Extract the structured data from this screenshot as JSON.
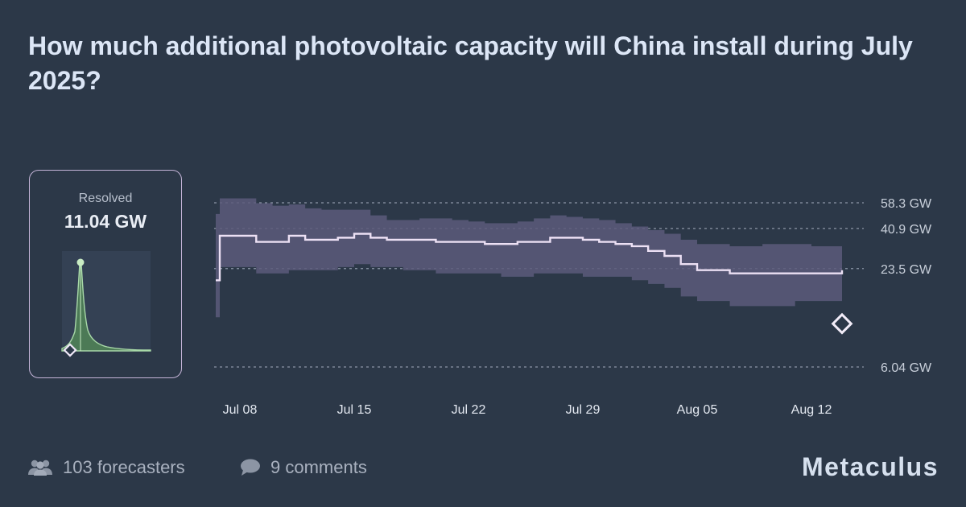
{
  "title": "How much additional photovoltaic capacity will China install during July 2025?",
  "resolution": {
    "label": "Resolved",
    "value_text": "11.04 GW"
  },
  "footer": {
    "forecasters_text": "103 forecasters",
    "comments_text": "9 comments",
    "brand": "Metaculus",
    "forecasters_icon": "users-icon",
    "comments_icon": "speech-bubble-icon"
  },
  "colors": {
    "background": "#2c3848",
    "band": "#5c5a7b",
    "median_line": "#ece0f4",
    "resolved_card_border": "#c4b4d8",
    "mini_density_fill": "#4c7a56",
    "mini_density_stroke": "#a8d8a8",
    "grid": "#8b95a6"
  },
  "chart_data": {
    "type": "area",
    "subtype": "forecast-median-with-interval",
    "title": "",
    "xlabel": "",
    "ylabel": "",
    "y_unit": "GW",
    "y_scale": "log",
    "ylim": [
      6.04,
      58.3
    ],
    "y_ticks": [
      {
        "value": 58.3,
        "label": "58.3 GW"
      },
      {
        "value": 40.9,
        "label": "40.9 GW"
      },
      {
        "value": 23.5,
        "label": "23.5 GW"
      },
      {
        "value": 6.04,
        "label": "6.04 GW"
      }
    ],
    "x_ticks": [
      "Jul 08",
      "Jul 15",
      "Jul 22",
      "Jul 29",
      "Aug 05",
      "Aug 12"
    ],
    "x_range": [
      "2025-07-08",
      "2025-08-14"
    ],
    "grid": "horizontal-dashed",
    "resolution_value": 11.04,
    "series": [
      {
        "name": "",
        "points": [
          {
            "x": "2025-07-08",
            "median": 20,
            "lower": 12,
            "upper": 50
          },
          {
            "x": "2025-07-08",
            "median": 37,
            "lower": 24,
            "upper": 62
          },
          {
            "x": "2025-07-09",
            "median": 34,
            "lower": 22,
            "upper": 58
          },
          {
            "x": "2025-07-10",
            "median": 34,
            "lower": 22,
            "upper": 56
          },
          {
            "x": "2025-07-11",
            "median": 37,
            "lower": 23,
            "upper": 57
          },
          {
            "x": "2025-07-12",
            "median": 35,
            "lower": 23,
            "upper": 54
          },
          {
            "x": "2025-07-13",
            "median": 35,
            "lower": 23,
            "upper": 53
          },
          {
            "x": "2025-07-14",
            "median": 36,
            "lower": 24,
            "upper": 53
          },
          {
            "x": "2025-07-15",
            "median": 38,
            "lower": 25,
            "upper": 53
          },
          {
            "x": "2025-07-16",
            "median": 36,
            "lower": 24,
            "upper": 49
          },
          {
            "x": "2025-07-17",
            "median": 35,
            "lower": 24,
            "upper": 46
          },
          {
            "x": "2025-07-18",
            "median": 35,
            "lower": 23,
            "upper": 46
          },
          {
            "x": "2025-07-19",
            "median": 35,
            "lower": 23,
            "upper": 47
          },
          {
            "x": "2025-07-20",
            "median": 34,
            "lower": 22,
            "upper": 47
          },
          {
            "x": "2025-07-21",
            "median": 34,
            "lower": 22,
            "upper": 46
          },
          {
            "x": "2025-07-22",
            "median": 34,
            "lower": 22,
            "upper": 45
          },
          {
            "x": "2025-07-23",
            "median": 33,
            "lower": 22,
            "upper": 44
          },
          {
            "x": "2025-07-24",
            "median": 33,
            "lower": 21,
            "upper": 44
          },
          {
            "x": "2025-07-25",
            "median": 34,
            "lower": 21,
            "upper": 45
          },
          {
            "x": "2025-07-26",
            "median": 34,
            "lower": 22,
            "upper": 47
          },
          {
            "x": "2025-07-27",
            "median": 36,
            "lower": 22,
            "upper": 49
          },
          {
            "x": "2025-07-28",
            "median": 36,
            "lower": 22,
            "upper": 48
          },
          {
            "x": "2025-07-29",
            "median": 35,
            "lower": 21,
            "upper": 47
          },
          {
            "x": "2025-07-30",
            "median": 34,
            "lower": 21,
            "upper": 46
          },
          {
            "x": "2025-07-31",
            "median": 33,
            "lower": 21,
            "upper": 44
          },
          {
            "x": "2025-08-01",
            "median": 32,
            "lower": 20,
            "upper": 42
          },
          {
            "x": "2025-08-02",
            "median": 30,
            "lower": 19,
            "upper": 40
          },
          {
            "x": "2025-08-03",
            "median": 28,
            "lower": 18,
            "upper": 38
          },
          {
            "x": "2025-08-04",
            "median": 25,
            "lower": 16,
            "upper": 35
          },
          {
            "x": "2025-08-05",
            "median": 23,
            "lower": 15,
            "upper": 33
          },
          {
            "x": "2025-08-06",
            "median": 23,
            "lower": 15,
            "upper": 33
          },
          {
            "x": "2025-08-07",
            "median": 22,
            "lower": 14,
            "upper": 32
          },
          {
            "x": "2025-08-08",
            "median": 22,
            "lower": 14,
            "upper": 32
          },
          {
            "x": "2025-08-09",
            "median": 22,
            "lower": 14,
            "upper": 33
          },
          {
            "x": "2025-08-10",
            "median": 22,
            "lower": 14,
            "upper": 33
          },
          {
            "x": "2025-08-11",
            "median": 22,
            "lower": 15,
            "upper": 33
          },
          {
            "x": "2025-08-12",
            "median": 22,
            "lower": 15,
            "upper": 32
          },
          {
            "x": "2025-08-13",
            "median": 22,
            "lower": 15,
            "upper": 32
          },
          {
            "x": "2025-08-14",
            "median": 23,
            "lower": 15,
            "upper": 30
          }
        ]
      }
    ]
  }
}
